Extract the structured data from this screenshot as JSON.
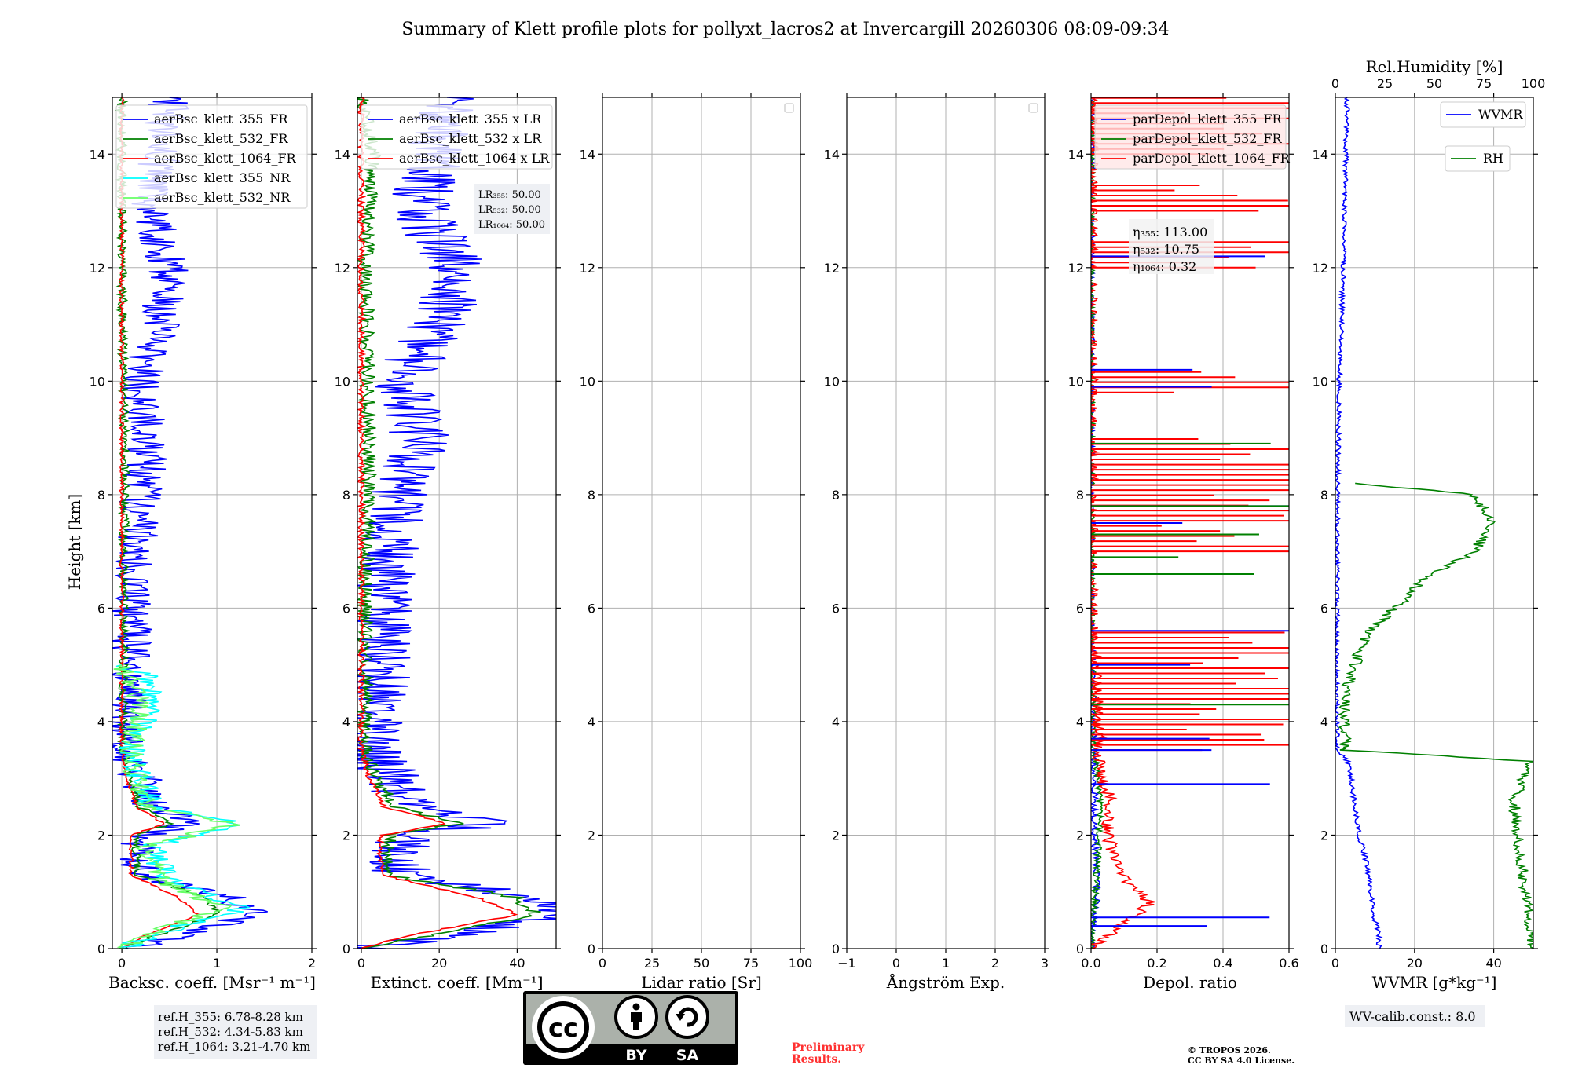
{
  "title": "Summary of Klett profile plots for pollyxt_lacros2 at Invercargill 20260306 08:09-09:34",
  "ylabel": "Height [km]",
  "colors": {
    "c355": "#0000ff",
    "c532": "#008000",
    "c1064": "#ff0000",
    "c355nr": "#00ffff",
    "c532nr": "#66ff66",
    "grid": "#b0b0b0"
  },
  "chart_data": [
    {
      "id": "backscatter",
      "type": "line",
      "xlabel": "Backsc. coeff. [Msr⁻¹ m⁻¹]",
      "xlim": [
        -0.1,
        2
      ],
      "ylim": [
        0,
        15
      ],
      "xticks": [
        0,
        1,
        2
      ],
      "xtick_labels": [
        "0",
        "1",
        "2"
      ],
      "legend": [
        "aerBsc_klett_355_FR",
        "aerBsc_klett_532_FR",
        "aerBsc_klett_1064_FR",
        "aerBsc_klett_355_NR",
        "aerBsc_klett_532_NR"
      ],
      "series": [
        {
          "name": "aerBsc_klett_355_FR",
          "color": "#0000ff",
          "noise": 0.22,
          "points": [
            [
              0.0,
              0.0
            ],
            [
              0.55,
              0.2
            ],
            [
              1.4,
              0.6
            ],
            [
              1.1,
              0.9
            ],
            [
              0.2,
              1.3
            ],
            [
              0.2,
              2.0
            ],
            [
              0.75,
              2.2
            ],
            [
              0.3,
              2.5
            ],
            [
              0.2,
              3.0
            ],
            [
              0.0,
              3.5
            ],
            [
              0.05,
              4.0
            ],
            [
              0.1,
              5.0
            ],
            [
              0.1,
              6.0
            ],
            [
              0.15,
              7.0
            ],
            [
              0.2,
              8.0
            ],
            [
              0.3,
              9.0
            ],
            [
              0.2,
              10.0
            ],
            [
              0.4,
              11.0
            ],
            [
              0.5,
              12.0
            ],
            [
              0.3,
              13.0
            ],
            [
              0.4,
              14.0
            ],
            [
              0.5,
              15.0
            ]
          ]
        },
        {
          "name": "aerBsc_klett_532_FR",
          "color": "#008000",
          "noise": 0.05,
          "points": [
            [
              0.0,
              0.0
            ],
            [
              0.3,
              0.2
            ],
            [
              1.0,
              0.6
            ],
            [
              0.9,
              0.9
            ],
            [
              0.15,
              1.3
            ],
            [
              0.15,
              2.0
            ],
            [
              0.5,
              2.2
            ],
            [
              0.2,
              2.5
            ],
            [
              0.1,
              3.0
            ],
            [
              0.02,
              3.5
            ],
            [
              0.02,
              6.0
            ],
            [
              0.03,
              9.0
            ],
            [
              0.0,
              12.0
            ],
            [
              0.0,
              15.0
            ]
          ]
        },
        {
          "name": "aerBsc_klett_1064_FR",
          "color": "#ff0000",
          "noise": 0.02,
          "points": [
            [
              0.0,
              0.0
            ],
            [
              0.2,
              0.2
            ],
            [
              0.8,
              0.6
            ],
            [
              0.6,
              0.9
            ],
            [
              0.1,
              1.3
            ],
            [
              0.1,
              2.0
            ],
            [
              0.45,
              2.2
            ],
            [
              0.15,
              2.5
            ],
            [
              0.05,
              3.0
            ],
            [
              0.0,
              3.5
            ],
            [
              0.0,
              8.0
            ],
            [
              0.0,
              15.0
            ]
          ]
        },
        {
          "name": "aerBsc_klett_355_NR",
          "color": "#00ffff",
          "noise": 0.15,
          "points": [
            [
              0.0,
              0.0
            ],
            [
              0.6,
              0.4
            ],
            [
              1.3,
              0.7
            ],
            [
              0.5,
              1.2
            ],
            [
              0.3,
              1.8
            ],
            [
              1.3,
              2.2
            ],
            [
              0.3,
              2.5
            ],
            [
              0.2,
              3.0
            ],
            [
              0.1,
              3.5
            ],
            [
              0.3,
              4.3
            ],
            [
              0.3,
              4.8
            ],
            [
              0.0,
              5.0
            ]
          ]
        },
        {
          "name": "aerBsc_klett_532_NR",
          "color": "#66ff66",
          "noise": 0.12,
          "points": [
            [
              0.0,
              0.0
            ],
            [
              0.5,
              0.4
            ],
            [
              1.1,
              0.7
            ],
            [
              0.4,
              1.2
            ],
            [
              0.25,
              1.8
            ],
            [
              1.2,
              2.2
            ],
            [
              0.25,
              2.5
            ],
            [
              0.15,
              3.0
            ],
            [
              0.1,
              3.5
            ],
            [
              0.2,
              4.3
            ],
            [
              0.0,
              5.0
            ]
          ]
        }
      ]
    },
    {
      "id": "extinction",
      "type": "line",
      "xlabel": "Extinct. coeff. [Mm⁻¹]",
      "xlim": [
        -1,
        50
      ],
      "ylim": [
        0,
        15
      ],
      "xticks": [
        0,
        20,
        40
      ],
      "xtick_labels": [
        "0",
        "20",
        "40"
      ],
      "legend": [
        "aerBsc_klett_355 x LR",
        "aerBsc_klett_532 x LR",
        "aerBsc_klett_1064 x LR"
      ],
      "annotation": [
        "LR₃₅₅: 50.00",
        "LR₅₃₂: 50.00",
        "LR₁₀₆₄: 50.00"
      ],
      "series": [
        {
          "name": "aerBsc_klett_355 x LR",
          "color": "#0000ff",
          "noise": 8,
          "points": [
            [
              0,
              0
            ],
            [
              20,
              0.2
            ],
            [
              50,
              0.6
            ],
            [
              45,
              0.9
            ],
            [
              10,
              1.3
            ],
            [
              10,
              2.0
            ],
            [
              35,
              2.2
            ],
            [
              12,
              2.5
            ],
            [
              8,
              3.0
            ],
            [
              2,
              3.5
            ],
            [
              3,
              4.0
            ],
            [
              5,
              5.0
            ],
            [
              5,
              6.0
            ],
            [
              7,
              7.0
            ],
            [
              10,
              8.0
            ],
            [
              15,
              9.0
            ],
            [
              10,
              10.0
            ],
            [
              20,
              11.0
            ],
            [
              25,
              12.0
            ],
            [
              15,
              13.0
            ],
            [
              18,
              14.0
            ],
            [
              22,
              15.0
            ]
          ]
        },
        {
          "name": "aerBsc_klett_532 x LR",
          "color": "#008000",
          "noise": 2,
          "points": [
            [
              0,
              0
            ],
            [
              15,
              0.2
            ],
            [
              45,
              0.6
            ],
            [
              40,
              0.9
            ],
            [
              7,
              1.3
            ],
            [
              7,
              2.0
            ],
            [
              25,
              2.2
            ],
            [
              8,
              2.5
            ],
            [
              4,
              3.0
            ],
            [
              1,
              3.5
            ],
            [
              1,
              6.0
            ],
            [
              2,
              9.0
            ],
            [
              1,
              12.0
            ],
            [
              3,
              14.0
            ],
            [
              0,
              15.0
            ]
          ]
        },
        {
          "name": "aerBsc_klett_1064 x LR",
          "color": "#ff0000",
          "noise": 0.8,
          "points": [
            [
              0,
              0
            ],
            [
              10,
              0.2
            ],
            [
              40,
              0.6
            ],
            [
              30,
              0.9
            ],
            [
              5,
              1.3
            ],
            [
              5,
              2.0
            ],
            [
              22,
              2.2
            ],
            [
              6,
              2.5
            ],
            [
              2,
              3.0
            ],
            [
              0,
              3.5
            ],
            [
              0,
              8.0
            ],
            [
              0,
              15.0
            ]
          ]
        }
      ]
    },
    {
      "id": "lidar_ratio",
      "type": "line",
      "xlabel": "Lidar ratio [Sr]",
      "xlim": [
        0,
        100
      ],
      "ylim": [
        0,
        15
      ],
      "xticks": [
        0,
        25,
        50,
        75,
        100
      ],
      "xtick_labels": [
        "0",
        "25",
        "50",
        "75",
        "100"
      ],
      "series": []
    },
    {
      "id": "angstrom",
      "type": "line",
      "xlabel": "Ångström Exp.",
      "xlim": [
        -1,
        3
      ],
      "ylim": [
        0,
        15
      ],
      "xticks": [
        -1,
        0,
        1,
        2,
        3
      ],
      "xtick_labels": [
        "−1",
        "0",
        "1",
        "2",
        "3"
      ],
      "series": []
    },
    {
      "id": "depol",
      "type": "line",
      "xlabel": "Depol. ratio",
      "xlim": [
        0,
        0.6
      ],
      "ylim": [
        0,
        15
      ],
      "xticks": [
        0,
        0.2,
        0.4,
        0.6
      ],
      "xtick_labels": [
        "0.0",
        "0.2",
        "0.4",
        "0.6"
      ],
      "legend": [
        "parDepol_klett_355_FR",
        "parDepol_klett_532_FR",
        "parDepol_klett_1064_FR"
      ],
      "annotation": [
        "η₃₅₅: 113.00",
        "η₅₃₂: 10.75",
        "η₁₀₆₄: 0.32"
      ],
      "series": [
        {
          "name": "parDepol_klett_355_FR",
          "color": "#0000ff",
          "noise": 0.01,
          "points": [
            [
              0.0,
              0.0
            ],
            [
              0.02,
              1.0
            ],
            [
              0.01,
              2.0
            ],
            [
              0.01,
              3.0
            ],
            [
              0.0,
              6.0
            ],
            [
              0.0,
              15.0
            ]
          ]
        },
        {
          "name": "parDepol_klett_532_FR",
          "color": "#008000",
          "noise": 0.01,
          "points": [
            [
              0.0,
              0.0
            ],
            [
              0.02,
              1.5
            ],
            [
              0.03,
              2.5
            ],
            [
              0.01,
              3.5
            ],
            [
              0.0,
              6.0
            ],
            [
              0.0,
              15.0
            ]
          ]
        },
        {
          "name": "parDepol_klett_1064_FR",
          "color": "#ff0000",
          "noise": 0.02,
          "points": [
            [
              0.0,
              0.0
            ],
            [
              0.18,
              0.8
            ],
            [
              0.09,
              1.3
            ],
            [
              0.05,
              2.0
            ],
            [
              0.06,
              2.6
            ],
            [
              0.03,
              3.0
            ],
            [
              0.0,
              6.0
            ],
            [
              0.0,
              15.0
            ]
          ]
        }
      ],
      "spikes": [
        {
          "color": "#ff0000",
          "x": 0.6,
          "y_ranges": [
            [
              3.5,
              5.6
            ],
            [
              7.0,
              9.0
            ],
            [
              9.8,
              10.2
            ],
            [
              12.0,
              12.5
            ],
            [
              13.0,
              13.5
            ],
            [
              14.0,
              15.0
            ]
          ]
        },
        {
          "color": "#0000ff",
          "x": 0.6,
          "heights": [
            0.4,
            0.55,
            2.9,
            3.5,
            3.7,
            5.0,
            5.6,
            7.5,
            7.8,
            9.9,
            10.2,
            12.2
          ]
        },
        {
          "color": "#008000",
          "x": 0.6,
          "heights": [
            4.3,
            6.6,
            6.9,
            7.3,
            7.8,
            8.9
          ]
        }
      ]
    },
    {
      "id": "wvmr",
      "type": "line",
      "xlabel": "WVMR [g*kg⁻¹]",
      "xlim": [
        0,
        50
      ],
      "ylim": [
        0,
        15
      ],
      "xticks": [
        0,
        20,
        40
      ],
      "xtick_labels": [
        "0",
        "20",
        "40"
      ],
      "x2label": "Rel.Humidity [%]",
      "x2lim": [
        0,
        100
      ],
      "x2ticks": [
        0,
        25,
        50,
        75,
        100
      ],
      "x2tick_labels": [
        "0",
        "25",
        "50",
        "75",
        "100"
      ],
      "legend": [
        "WVMR",
        "RH"
      ],
      "annotation": [
        "WV-calib.const.: 8.0"
      ],
      "series": [
        {
          "name": "WVMR",
          "color": "#0000ff",
          "axis": "x",
          "noise": 0.6,
          "points": [
            [
              11,
              0.0
            ],
            [
              11,
              0.3
            ],
            [
              10,
              0.5
            ],
            [
              9,
              1.0
            ],
            [
              8,
              1.5
            ],
            [
              6,
              2.0
            ],
            [
              5,
              2.5
            ],
            [
              4,
              3.0
            ],
            [
              3,
              3.3
            ],
            [
              0.5,
              3.5
            ],
            [
              0.3,
              5.0
            ],
            [
              0.5,
              8.0
            ],
            [
              1,
              10.0
            ],
            [
              2,
              12.0
            ],
            [
              3,
              15.0
            ]
          ]
        },
        {
          "name": "RH",
          "color": "#008000",
          "axis": "x2",
          "noise": 3,
          "points": [
            [
              100,
              0.0
            ],
            [
              90,
              2.6
            ],
            [
              95,
              3.0
            ],
            [
              100,
              3.3
            ],
            [
              5,
              3.5
            ],
            [
              5,
              4.5
            ],
            [
              10,
              5.0
            ],
            [
              15,
              5.5
            ],
            [
              30,
              6.0
            ],
            [
              45,
              6.5
            ],
            [
              70,
              7.0
            ],
            [
              80,
              7.5
            ],
            [
              70,
              8.0
            ],
            [
              10,
              8.2
            ]
          ]
        }
      ]
    }
  ],
  "reference_heights": [
    "ref.H_355: 6.78-8.28 km",
    "ref.H_532: 4.34-5.83 km",
    "ref.H_1064: 3.21-4.70 km"
  ],
  "license": {
    "cc": "cc",
    "by": "BY",
    "sa": "SA"
  },
  "preliminary": [
    "Preliminary",
    "Results."
  ],
  "copyright": [
    "© TROPOS 2026.",
    "CC BY SA 4.0 License."
  ]
}
